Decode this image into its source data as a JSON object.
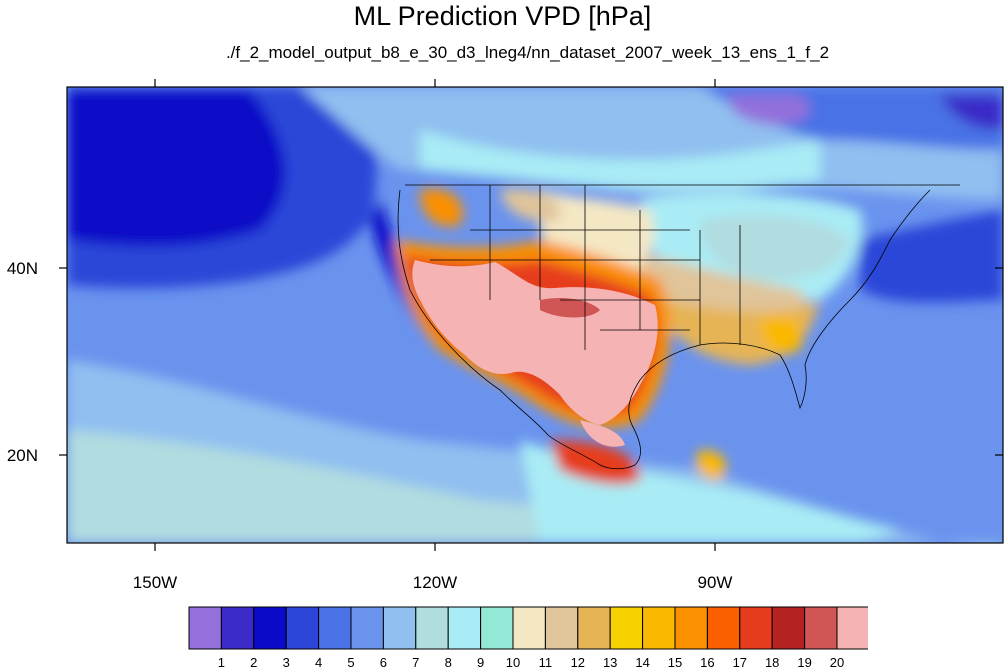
{
  "title": "ML Prediction VPD [hPa]",
  "subtitle": "./f_2_model_output_b8_e_30_d3_lneg4/nn_dataset_2007_week_13_ens_1_f_2",
  "lat_labels": [
    "40N",
    "20N"
  ],
  "lon_labels": [
    "150W",
    "120W",
    "90W"
  ],
  "colorbar": {
    "colors": [
      "#9370db",
      "#3b2bc8",
      "#0a0ac8",
      "#2b46d8",
      "#4a72e6",
      "#6a93ee",
      "#90bff0",
      "#b1dce0",
      "#a9ecf5",
      "#94e8d6",
      "#f4e7c4",
      "#e0c49a",
      "#e6b455",
      "#f8d200",
      "#fbb800",
      "#fb9000",
      "#fb6000",
      "#e63c1e",
      "#b52222",
      "#d05555",
      "#f6b3b3"
    ],
    "labels": [
      "1",
      "2",
      "3",
      "4",
      "5",
      "6",
      "7",
      "8",
      "9",
      "10",
      "11",
      "12",
      "13",
      "14",
      "15",
      "16",
      "17",
      "18",
      "19",
      "20"
    ]
  }
}
